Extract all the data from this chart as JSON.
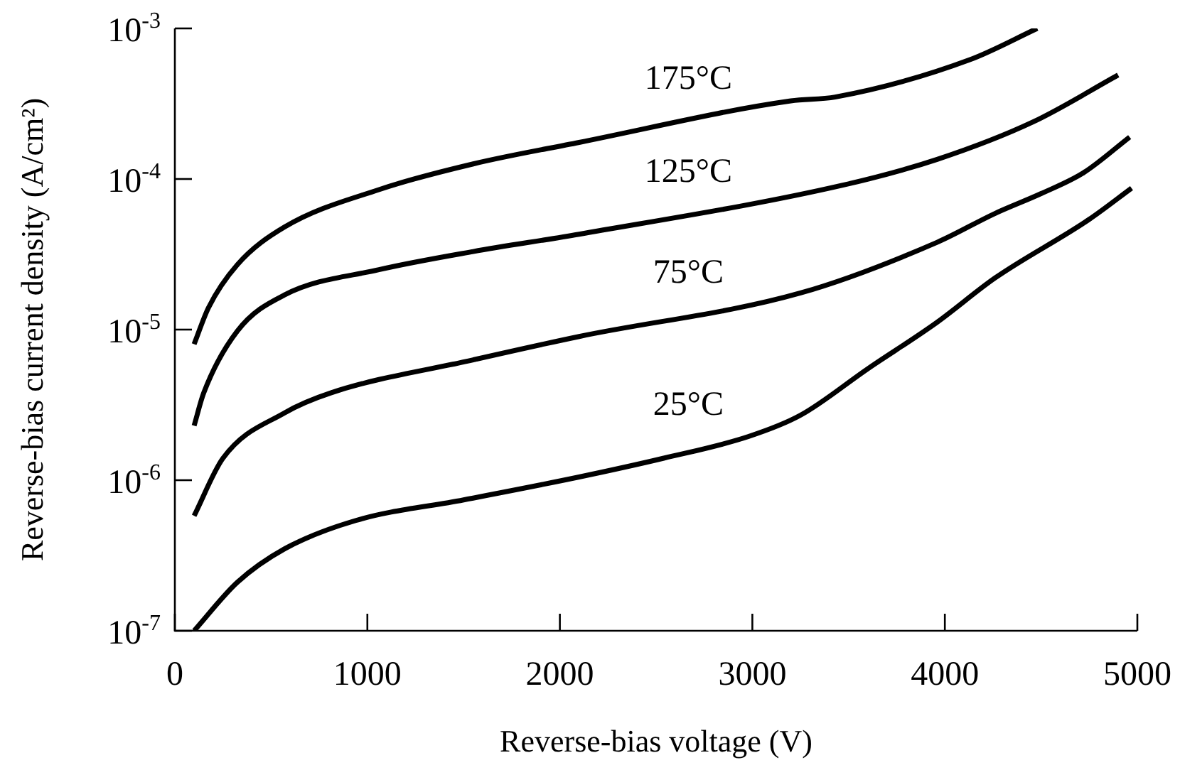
{
  "chart_data": {
    "type": "line",
    "xlabel": "Reverse-bias voltage (V)",
    "ylabel": "Reverse-bias current density (A/cm²)",
    "log": "y",
    "grid": false,
    "legend": false,
    "marker": "none",
    "line_style": "solid",
    "xlim": [
      0,
      5000
    ],
    "xticks": [
      0,
      1000,
      2000,
      3000,
      4000,
      5000
    ],
    "ylim": [
      1e-07,
      0.001
    ],
    "yticks": [
      {
        "value": 1e-07,
        "label": "10$^{-7}$"
      },
      {
        "value": 1e-06,
        "label": "10$^{-6}$"
      },
      {
        "value": 1e-05,
        "label": "10$^{-5}$"
      },
      {
        "value": 0.0001,
        "label": "10$^{-4}$"
      },
      {
        "value": 0.001,
        "label": "10$^{-3}$"
      }
    ],
    "series": [
      {
        "name": "175°C",
        "color": "#000000",
        "x": [
          100,
          175,
          325,
          570,
          1060,
          1550,
          2100,
          3200,
          3430,
          4130,
          4480
        ],
        "values": [
          8e-06,
          1.4e-05,
          2.7e-05,
          4.8e-05,
          8.5e-05,
          0.000126,
          0.000175,
          0.00033,
          0.00035,
          0.00062,
          0.001
        ]
      },
      {
        "name": "125°C",
        "color": "#000000",
        "x": [
          100,
          150,
          325,
          570,
          1060,
          1550,
          2100,
          3470,
          3960,
          4460,
          4900
        ],
        "values": [
          2.3e-06,
          3.8e-06,
          9.8e-06,
          1.7e-05,
          2.5e-05,
          3.3e-05,
          4.3e-05,
          9.1e-05,
          0.000135,
          0.00024,
          0.00049
        ]
      },
      {
        "name": "75°C",
        "color": "#000000",
        "x": [
          100,
          250,
          570,
          810,
          1550,
          2100,
          3250,
          3960,
          4260,
          4500,
          4720,
          4960
        ],
        "values": [
          5.8e-07,
          1.4e-06,
          2.8e-06,
          3.8e-06,
          6.3e-06,
          9e-06,
          1.75e-05,
          3.8e-05,
          5.9e-05,
          8e-05,
          0.00011,
          0.00019
        ]
      },
      {
        "name": "25°C",
        "color": "#000000",
        "x": [
          100,
          325,
          570,
          940,
          1500,
          2100,
          2540,
          2980,
          3250,
          3600,
          3960,
          4260,
          4750,
          4970
        ],
        "values": [
          1e-07,
          2.1e-07,
          3.5e-07,
          5.4e-07,
          7.4e-07,
          1.05e-06,
          1.4e-06,
          1.95e-06,
          2.7e-06,
          5.5e-06,
          1.12e-05,
          2.2e-05,
          5.4e-05,
          8.7e-05
        ]
      }
    ]
  }
}
